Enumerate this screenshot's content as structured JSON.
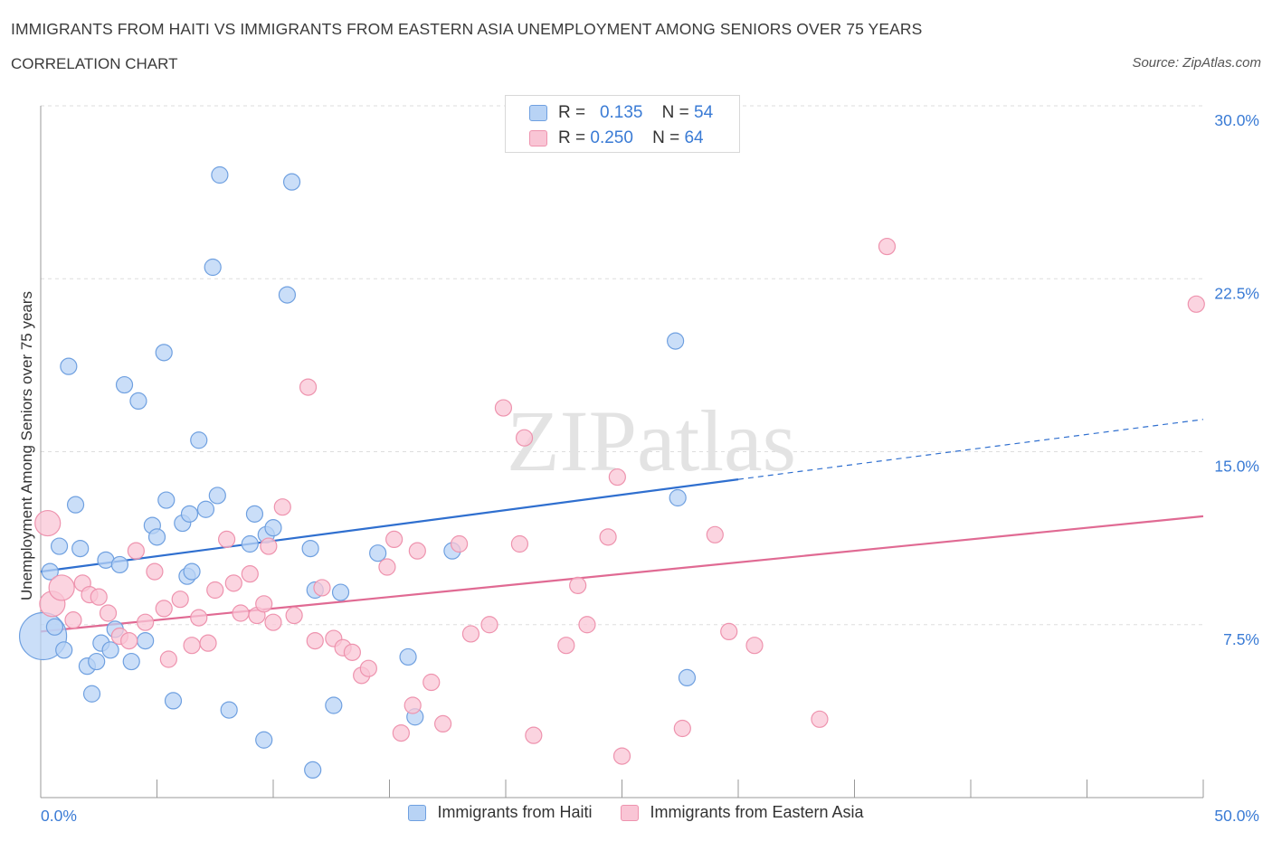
{
  "header": {
    "title": "IMMIGRANTS FROM HAITI VS IMMIGRANTS FROM EASTERN ASIA UNEMPLOYMENT AMONG SENIORS OVER 75 YEARS",
    "subtitle": "CORRELATION CHART",
    "source": "Source: ZipAtlas.com"
  },
  "legend": {
    "r_label": "R =",
    "n_label": "N =",
    "series": [
      {
        "name": "Immigrants from Haiti",
        "r": "0.135",
        "n": "54"
      },
      {
        "name": "Immigrants from Eastern Asia",
        "r": "0.250",
        "n": "64"
      }
    ]
  },
  "colors": {
    "haiti_fill": "#b8d3f5",
    "haiti_stroke": "#6fa0e0",
    "haiti_line": "#2f6fcf",
    "asia_fill": "#f9c5d5",
    "asia_stroke": "#ee93ae",
    "asia_line": "#e06a93",
    "grid": "#dddddd",
    "axis_text": "#3a7bd5"
  },
  "chart_data": {
    "type": "scatter",
    "title": "IMMIGRANTS FROM HAITI VS IMMIGRANTS FROM EASTERN ASIA UNEMPLOYMENT AMONG SENIORS OVER 75 YEARS",
    "xlabel": "",
    "ylabel": "Unemployment Among Seniors over 75 years",
    "xlim": [
      0,
      50
    ],
    "ylim": [
      0,
      30
    ],
    "x_tick_labels": [
      "0.0%",
      "50.0%"
    ],
    "y_ticks": [
      7.5,
      15.0,
      22.5,
      30.0
    ],
    "y_tick_labels": [
      "7.5%",
      "15.0%",
      "22.5%",
      "30.0%"
    ],
    "watermark": "ZIPatlas",
    "series": [
      {
        "name": "Immigrants from Haiti",
        "r": 0.135,
        "n": 54,
        "trend": {
          "x0": 0,
          "y0": 9.8,
          "x1": 30,
          "y1": 13.8,
          "dash_x1": 50,
          "dash_y1": 16.4
        },
        "points": [
          [
            0.1,
            7.0,
            3
          ],
          [
            0.4,
            9.8,
            1
          ],
          [
            0.6,
            7.4,
            1
          ],
          [
            0.8,
            10.9,
            1
          ],
          [
            1.0,
            6.4,
            1
          ],
          [
            1.2,
            18.7,
            1
          ],
          [
            1.5,
            12.7,
            1
          ],
          [
            1.7,
            10.8,
            1
          ],
          [
            2.0,
            5.7,
            1
          ],
          [
            2.2,
            4.5,
            1
          ],
          [
            2.4,
            5.9,
            1
          ],
          [
            2.6,
            6.7,
            1
          ],
          [
            2.8,
            10.3,
            1
          ],
          [
            3.0,
            6.4,
            1
          ],
          [
            3.2,
            7.3,
            1
          ],
          [
            3.4,
            10.1,
            1
          ],
          [
            3.6,
            17.9,
            1
          ],
          [
            3.9,
            5.9,
            1
          ],
          [
            4.2,
            17.2,
            1
          ],
          [
            4.5,
            6.8,
            1
          ],
          [
            4.8,
            11.8,
            1
          ],
          [
            5.0,
            11.3,
            1
          ],
          [
            5.3,
            19.3,
            1
          ],
          [
            5.4,
            12.9,
            1
          ],
          [
            5.7,
            4.2,
            1
          ],
          [
            6.1,
            11.9,
            1
          ],
          [
            6.3,
            9.6,
            1
          ],
          [
            6.4,
            12.3,
            1
          ],
          [
            6.5,
            9.8,
            1
          ],
          [
            6.8,
            15.5,
            1
          ],
          [
            7.1,
            12.5,
            1
          ],
          [
            7.4,
            23.0,
            1
          ],
          [
            7.6,
            13.1,
            1
          ],
          [
            7.7,
            27.0,
            1
          ],
          [
            8.1,
            3.8,
            1
          ],
          [
            9.0,
            11.0,
            1
          ],
          [
            9.2,
            12.3,
            1
          ],
          [
            9.6,
            2.5,
            1
          ],
          [
            9.7,
            11.4,
            1
          ],
          [
            10.0,
            11.7,
            1
          ],
          [
            10.6,
            21.8,
            1
          ],
          [
            10.8,
            26.7,
            1
          ],
          [
            11.6,
            10.8,
            1
          ],
          [
            11.8,
            9.0,
            1
          ],
          [
            11.7,
            1.2,
            1
          ],
          [
            12.6,
            4.0,
            1
          ],
          [
            12.9,
            8.9,
            1
          ],
          [
            14.5,
            10.6,
            1
          ],
          [
            15.8,
            6.1,
            1
          ],
          [
            16.1,
            3.5,
            1
          ],
          [
            17.7,
            10.7,
            1
          ],
          [
            27.3,
            19.8,
            1
          ],
          [
            27.4,
            13.0,
            1
          ],
          [
            27.8,
            5.2,
            0
          ]
        ]
      },
      {
        "name": "Immigrants from Eastern Asia",
        "r": 0.25,
        "n": 64,
        "trend": {
          "x0": 0,
          "y0": 7.2,
          "x1": 50,
          "y1": 12.2
        },
        "points": [
          [
            0.3,
            11.9,
            2
          ],
          [
            0.5,
            8.4,
            2
          ],
          [
            0.9,
            9.1,
            2
          ],
          [
            1.4,
            7.7,
            1
          ],
          [
            1.8,
            9.3,
            1
          ],
          [
            2.1,
            8.8,
            1
          ],
          [
            2.5,
            8.7,
            1
          ],
          [
            2.9,
            8.0,
            1
          ],
          [
            3.4,
            7.0,
            1
          ],
          [
            3.8,
            6.8,
            1
          ],
          [
            4.1,
            10.7,
            1
          ],
          [
            4.5,
            7.6,
            1
          ],
          [
            4.9,
            9.8,
            1
          ],
          [
            5.3,
            8.2,
            1
          ],
          [
            5.5,
            6.0,
            1
          ],
          [
            6.0,
            8.6,
            1
          ],
          [
            6.5,
            6.6,
            1
          ],
          [
            6.8,
            7.8,
            1
          ],
          [
            7.2,
            6.7,
            1
          ],
          [
            7.5,
            9.0,
            1
          ],
          [
            8.0,
            11.2,
            1
          ],
          [
            8.3,
            9.3,
            1
          ],
          [
            8.6,
            8.0,
            1
          ],
          [
            9.0,
            9.7,
            1
          ],
          [
            9.3,
            7.9,
            1
          ],
          [
            9.6,
            8.4,
            1
          ],
          [
            9.8,
            10.9,
            1
          ],
          [
            10.0,
            7.6,
            1
          ],
          [
            10.4,
            12.6,
            1
          ],
          [
            10.9,
            7.9,
            1
          ],
          [
            11.5,
            17.8,
            1
          ],
          [
            11.8,
            6.8,
            1
          ],
          [
            12.1,
            9.1,
            1
          ],
          [
            12.6,
            6.9,
            1
          ],
          [
            13.0,
            6.5,
            1
          ],
          [
            13.4,
            6.3,
            1
          ],
          [
            13.8,
            5.3,
            1
          ],
          [
            14.1,
            5.6,
            1
          ],
          [
            14.9,
            10.0,
            1
          ],
          [
            15.2,
            11.2,
            1
          ],
          [
            15.5,
            2.8,
            1
          ],
          [
            16.0,
            4.0,
            1
          ],
          [
            16.2,
            10.7,
            1
          ],
          [
            16.8,
            5.0,
            1
          ],
          [
            17.3,
            3.2,
            1
          ],
          [
            18.0,
            11.0,
            1
          ],
          [
            18.5,
            7.1,
            1
          ],
          [
            19.3,
            7.5,
            1
          ],
          [
            19.9,
            16.9,
            1
          ],
          [
            20.6,
            11.0,
            1
          ],
          [
            20.8,
            15.6,
            1
          ],
          [
            21.2,
            2.7,
            1
          ],
          [
            22.6,
            6.6,
            1
          ],
          [
            23.1,
            9.2,
            1
          ],
          [
            23.5,
            7.5,
            1
          ],
          [
            24.4,
            11.3,
            1
          ],
          [
            24.8,
            13.9,
            1
          ],
          [
            25.0,
            1.8,
            1
          ],
          [
            27.6,
            3.0,
            1
          ],
          [
            29.0,
            11.4,
            1
          ],
          [
            29.6,
            7.2,
            1
          ],
          [
            30.7,
            6.6,
            1
          ],
          [
            33.5,
            3.4,
            1
          ],
          [
            36.4,
            23.9,
            1
          ],
          [
            49.7,
            21.4,
            1
          ]
        ]
      }
    ]
  }
}
